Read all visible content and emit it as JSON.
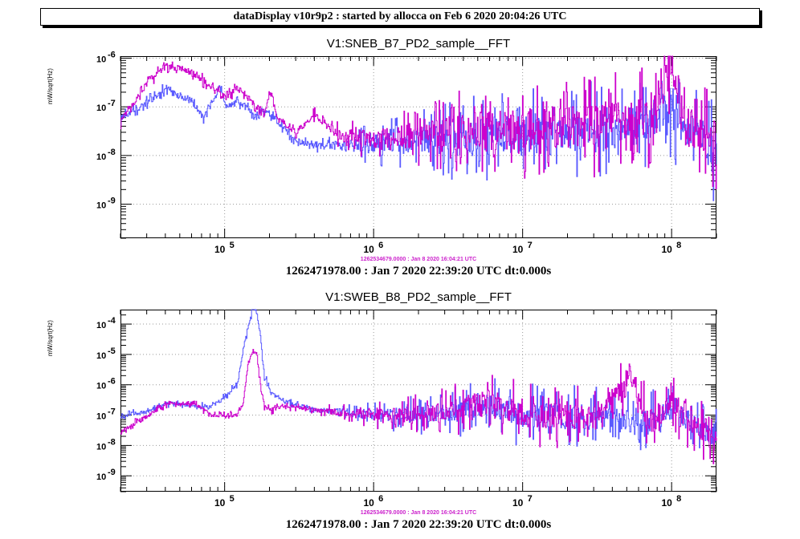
{
  "header": {
    "title": "dataDisplay v10r9p2 : started by allocca on Feb  6 2020 20:04:26 UTC"
  },
  "colors": {
    "series_blue": "#5a5aff",
    "series_magenta": "#cc00cc",
    "stamp": "#cc22cc",
    "grid": "#999999"
  },
  "chart_data": [
    {
      "type": "line",
      "title": "V1:SNEB_B7_PD2_sample__FFT",
      "ylabel": "mW/sqrt(Hz)",
      "xscale": "log",
      "yscale": "log",
      "xlim": [
        20000,
        200000000
      ],
      "ylim": [
        2e-10,
        1.1e-06
      ],
      "grid": true,
      "x_ticks": [
        {
          "value": 100000,
          "base": "10",
          "exp": "5"
        },
        {
          "value": 1000000,
          "base": "10",
          "exp": "6"
        },
        {
          "value": 10000000,
          "base": "10",
          "exp": "7"
        },
        {
          "value": 100000000,
          "base": "10",
          "exp": "8"
        }
      ],
      "y_ticks": [
        {
          "value": 1e-09,
          "base": "10",
          "exp": "-9"
        },
        {
          "value": 1e-08,
          "base": "10",
          "exp": "-8"
        },
        {
          "value": 1e-07,
          "base": "10",
          "exp": "-7"
        },
        {
          "value": 1e-06,
          "base": "10",
          "exp": "-6"
        }
      ],
      "series": [
        {
          "color": "#5a5aff",
          "x": [
            20000,
            31000,
            41000,
            61000,
            71000,
            92000,
            102000,
            122000,
            143000,
            163000,
            184000,
            205000,
            225000,
            300000,
            500000,
            1000000,
            3000000,
            10000000,
            30000000,
            70000000,
            100000000,
            120000000,
            150000000,
            200000000
          ],
          "y": [
            6e-08,
            1.3e-07,
            2.5e-07,
            1.2e-07,
            6e-08,
            2.5e-07,
            1e-07,
            1.3e-07,
            9e-08,
            6e-08,
            8e-08,
            7e-08,
            5e-08,
            2e-08,
            1.5e-08,
            1.8e-08,
            2.2e-08,
            2.5e-08,
            3e-08,
            4e-08,
            1e-07,
            3.5e-08,
            2e-08,
            1.2e-08
          ]
        },
        {
          "color": "#cc00cc",
          "x": [
            20000,
            31000,
            41000,
            51000,
            61000,
            71000,
            92000,
            102000,
            122000,
            143000,
            163000,
            184000,
            205000,
            225000,
            300000,
            400000,
            600000,
            1000000,
            3000000,
            10000000,
            30000000,
            70000000,
            100000000,
            120000000,
            150000000,
            200000000
          ],
          "y": [
            5e-08,
            3.5e-07,
            7e-07,
            6e-07,
            5e-07,
            3.5e-07,
            2e-07,
            1.5e-07,
            2.5e-07,
            1.6e-07,
            1e-07,
            8e-08,
            2e-07,
            6e-08,
            3e-08,
            7e-08,
            2.5e-08,
            2.2e-08,
            3e-08,
            3.5e-08,
            4e-08,
            6e-08,
            8e-07,
            6e-08,
            3e-08,
            2e-08
          ]
        }
      ]
    },
    {
      "type": "line",
      "title": "V1:SWEB_B8_PD2_sample__FFT",
      "ylabel": "mW/sqrt(Hz)",
      "xscale": "log",
      "yscale": "log",
      "xlim": [
        20000,
        200000000
      ],
      "ylim": [
        3e-10,
        0.0003
      ],
      "grid": true,
      "x_ticks": [
        {
          "value": 100000,
          "base": "10",
          "exp": "5"
        },
        {
          "value": 1000000,
          "base": "10",
          "exp": "6"
        },
        {
          "value": 10000000,
          "base": "10",
          "exp": "7"
        },
        {
          "value": 100000000,
          "base": "10",
          "exp": "8"
        }
      ],
      "y_ticks": [
        {
          "value": 1e-09,
          "base": "10",
          "exp": "-9"
        },
        {
          "value": 1e-08,
          "base": "10",
          "exp": "-8"
        },
        {
          "value": 1e-07,
          "base": "10",
          "exp": "-7"
        },
        {
          "value": 1e-06,
          "base": "10",
          "exp": "-6"
        },
        {
          "value": 1e-05,
          "base": "10",
          "exp": "-5"
        },
        {
          "value": 0.0001,
          "base": "10",
          "exp": "-4"
        }
      ],
      "series": [
        {
          "color": "#5a5aff",
          "x": [
            20000,
            31000,
            41000,
            61000,
            82000,
            102000,
            122000,
            133000,
            143000,
            153000,
            163000,
            173000,
            184000,
            205000,
            250000,
            400000,
            1000000,
            3000000,
            6000000,
            10000000,
            30000000,
            70000000,
            100000000,
            150000000,
            200000000
          ],
          "y": [
            1e-07,
            1.3e-07,
            2.5e-07,
            2e-07,
            2e-07,
            4e-07,
            1.2e-06,
            1.5e-05,
            8e-05,
            0.0003,
            0.0003,
            4e-05,
            2e-06,
            5e-07,
            3e-07,
            1.5e-07,
            1e-07,
            1.2e-07,
            2e-07,
            1e-07,
            8e-08,
            5e-08,
            2e-07,
            4e-08,
            2.5e-08
          ]
        },
        {
          "color": "#cc00cc",
          "x": [
            20000,
            31000,
            41000,
            61000,
            82000,
            102000,
            122000,
            133000,
            143000,
            153000,
            163000,
            173000,
            184000,
            205000,
            250000,
            400000,
            1000000,
            3000000,
            6000000,
            10000000,
            30000000,
            55000000,
            70000000,
            100000000,
            150000000,
            200000000
          ],
          "y": [
            3e-08,
            1e-07,
            2.5e-07,
            2.5e-07,
            1e-07,
            1e-07,
            1e-07,
            2.5e-07,
            5e-06,
            1.2e-05,
            1.2e-05,
            1e-06,
            2e-07,
            1.5e-07,
            2e-07,
            1.5e-07,
            1e-07,
            1.2e-07,
            3e-07,
            1e-07,
            8e-08,
            1.5e-06,
            5e-08,
            2.5e-07,
            4e-08,
            2.5e-08
          ]
        }
      ]
    }
  ],
  "panels": [
    {
      "title": "V1:SNEB_B7_PD2_sample__FFT",
      "ylabel": "mW/sqrt(Hz)",
      "stamp": "1262534679.0000 : Jan  8 2020 16:04:21 UTC",
      "time_label": "1262471978.00 : Jan  7 2020 22:39:20 UTC dt:0.000s"
    },
    {
      "title": "V1:SWEB_B8_PD2_sample__FFT",
      "ylabel": "mW/sqrt(Hz)",
      "stamp": "1262534679.0000 : Jan  8 2020 16:04:21 UTC",
      "time_label": "1262471978.00 : Jan  7 2020 22:39:20 UTC dt:0.000s"
    }
  ]
}
